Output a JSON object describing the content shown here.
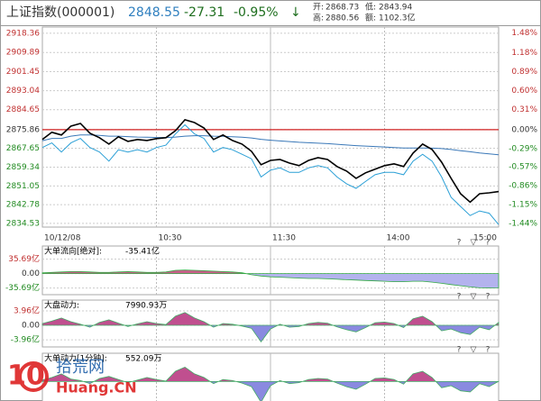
{
  "header": {
    "name": "上证指数(000001)",
    "price": "2848.55",
    "change": "-27.31",
    "change_pct": "-0.95%",
    "arrow": "↓",
    "stats": [
      {
        "label": "开:",
        "value": "2868.73"
      },
      {
        "label": "低:",
        "value": "2843.94"
      },
      {
        "label": "高:",
        "value": "2880.56"
      },
      {
        "label": "额:",
        "value": "1102.3亿"
      }
    ]
  },
  "controls": [
    "?",
    "▽",
    "?"
  ],
  "watermark": {
    "number": "10",
    "name": "拾荒网",
    "site": "Huang.CN"
  },
  "chart_data": [
    {
      "type": "line",
      "x": [
        0,
        5,
        10,
        15,
        20,
        25,
        30,
        35,
        40,
        45,
        50,
        55,
        60,
        65,
        70,
        75,
        80,
        85,
        90,
        95,
        100,
        105,
        110,
        115,
        120,
        125,
        130,
        135,
        140,
        145,
        150,
        155,
        160,
        165,
        170,
        175,
        180,
        185,
        190,
        195,
        200,
        205,
        210,
        215,
        220,
        225,
        230,
        235,
        240
      ],
      "xlim": [
        0,
        240
      ],
      "xticks": [
        {
          "value": 0,
          "label": "10/12/08"
        },
        {
          "value": 60,
          "label": "10:30"
        },
        {
          "value": 120,
          "label": "11:30"
        },
        {
          "value": 180,
          "label": "14:00"
        },
        {
          "value": 240,
          "label": "15:00"
        }
      ],
      "ylim": [
        2832.9,
        2921.1
      ],
      "yticks": [
        2918.36,
        2909.89,
        2901.45,
        2893.04,
        2884.65,
        2875.86,
        2867.65,
        2859.34,
        2851.05,
        2842.78,
        2834.53
      ],
      "y2lim": [
        -1.494,
        1.573
      ],
      "y2ticks": [
        {
          "value": 1.48,
          "label": "1.48%"
        },
        {
          "value": 1.18,
          "label": "1.18%"
        },
        {
          "value": 0.89,
          "label": "0.89%"
        },
        {
          "value": 0.6,
          "label": "0.60%"
        },
        {
          "value": 0.31,
          "label": "0.31%"
        },
        {
          "value": 0,
          "label": "0.00%"
        },
        {
          "value": -0.29,
          "label": "-0.29%"
        },
        {
          "value": -0.57,
          "label": "-0.57%"
        },
        {
          "value": -0.86,
          "label": "-0.86%"
        },
        {
          "value": -1.15,
          "label": "-1.15%"
        },
        {
          "value": -1.44,
          "label": "-1.44%"
        }
      ],
      "baseline": 2875.86,
      "grid": true,
      "series": [
        {
          "color": "#2a9fd6",
          "values": [
            2868,
            2870,
            2866,
            2870,
            2872,
            2868,
            2866,
            2862,
            2867,
            2866,
            2867,
            2866,
            2868,
            2869,
            2874,
            2878,
            2874,
            2872,
            2866,
            2868,
            2867,
            2865,
            2863,
            2855,
            2858,
            2859,
            2857,
            2857,
            2859,
            2860,
            2859,
            2855,
            2852,
            2850,
            2853,
            2856,
            2857,
            2857,
            2856,
            2862,
            2865,
            2862,
            2855,
            2846,
            2842,
            2838,
            2840,
            2839,
            2834
          ]
        },
        {
          "color": "#3a78b8",
          "values": [
            2871,
            2872,
            2872,
            2873,
            2873.5,
            2873.5,
            2873.3,
            2873,
            2873,
            2872.8,
            2872.6,
            2872.5,
            2872.4,
            2872.4,
            2872.6,
            2873,
            2873.2,
            2873.2,
            2873,
            2872.9,
            2872.7,
            2872.5,
            2872.2,
            2871.6,
            2871.2,
            2870.9,
            2870.6,
            2870.3,
            2870.1,
            2869.9,
            2869.7,
            2869.4,
            2869.1,
            2868.8,
            2868.6,
            2868.4,
            2868.2,
            2868,
            2867.8,
            2867.8,
            2867.8,
            2867.7,
            2867.5,
            2867.1,
            2866.6,
            2866.1,
            2865.6,
            2865.2,
            2864.8
          ]
        },
        {
          "color": "#000000",
          "values": [
            2871.5,
            2874.7,
            2873.5,
            2877.4,
            2878.6,
            2874.3,
            2872.3,
            2869.5,
            2872.7,
            2870.7,
            2871.5,
            2871.1,
            2871.9,
            2872.3,
            2875.4,
            2880.2,
            2879.0,
            2876.6,
            2871.5,
            2873.5,
            2871.1,
            2869.5,
            2866.3,
            2860.4,
            2862.3,
            2862.7,
            2861.1,
            2860.0,
            2862.3,
            2863.5,
            2862.7,
            2859.6,
            2857.6,
            2854.4,
            2856.8,
            2858.4,
            2860.0,
            2860.8,
            2859.6,
            2865.5,
            2869.5,
            2867.1,
            2861.5,
            2854.4,
            2847.6,
            2843.9,
            2847.6,
            2848.0,
            2848.55
          ]
        }
      ]
    },
    {
      "type": "area",
      "title": "大单流向[绝对]:",
      "headline": "-35.41亿",
      "x": [
        0,
        5,
        10,
        15,
        20,
        25,
        30,
        35,
        40,
        45,
        50,
        55,
        60,
        65,
        70,
        75,
        80,
        85,
        90,
        95,
        100,
        105,
        110,
        115,
        120,
        125,
        130,
        135,
        140,
        145,
        150,
        155,
        160,
        165,
        170,
        175,
        180,
        185,
        190,
        195,
        200,
        205,
        210,
        215,
        220,
        225,
        230,
        235,
        240
      ],
      "xlim": [
        0,
        240
      ],
      "ylim": [
        -52,
        68
      ],
      "yticks": [
        {
          "value": 35.69,
          "label": "35.69亿"
        },
        {
          "value": 0,
          "label": "0.00"
        },
        {
          "value": -35.69,
          "label": "-35.69亿"
        }
      ],
      "positive_color": "#c9608a",
      "negative_color": "#b3b3ee",
      "line_color": "#33aa44",
      "values": [
        2,
        3,
        4,
        5,
        5,
        4,
        3,
        3,
        4,
        5,
        4,
        3,
        3,
        4,
        8,
        9,
        8,
        7,
        6,
        5,
        4,
        2,
        -3,
        -6,
        -8,
        -9,
        -10,
        -11,
        -12,
        -12,
        -13,
        -14,
        -15,
        -16,
        -17,
        -18,
        -19,
        -20,
        -20,
        -19,
        -19,
        -21,
        -24,
        -27,
        -30,
        -33,
        -35,
        -35.5,
        -35.41
      ]
    },
    {
      "type": "area",
      "title": "大盘动力:",
      "headline": "7990.93万",
      "x": [
        0,
        5,
        10,
        15,
        20,
        25,
        30,
        35,
        40,
        45,
        50,
        55,
        60,
        65,
        70,
        75,
        80,
        85,
        90,
        95,
        100,
        105,
        110,
        115,
        120,
        125,
        130,
        135,
        140,
        145,
        150,
        155,
        160,
        165,
        170,
        175,
        180,
        185,
        190,
        195,
        200,
        205,
        210,
        215,
        220,
        225,
        230,
        235,
        240
      ],
      "xlim": [
        0,
        240
      ],
      "ylim": [
        -5.9,
        6.9
      ],
      "yticks": [
        {
          "value": 3.96,
          "label": "3.96亿"
        },
        {
          "value": 0,
          "label": "0.00"
        },
        {
          "value": -3.96,
          "label": "-3.96亿"
        }
      ],
      "positive_color": "#c04f8f",
      "negative_color": "#8a8ae0",
      "line_color": "#44aa66",
      "values": [
        0.5,
        1.2,
        2.0,
        1.0,
        0.3,
        -0.5,
        0.8,
        1.5,
        0.6,
        -0.3,
        0.4,
        1.0,
        0.5,
        0.2,
        2.5,
        3.5,
        2.0,
        1.0,
        -0.5,
        0.5,
        0.3,
        -0.2,
        -0.8,
        -4.5,
        -1.0,
        0.3,
        -0.5,
        -0.3,
        0.5,
        0.8,
        0.6,
        -0.4,
        -1.2,
        -1.8,
        -0.6,
        0.7,
        0.9,
        0.5,
        -0.6,
        1.8,
        2.5,
        1.0,
        -1.5,
        -1.0,
        -2.0,
        -2.5,
        -0.5,
        -1.2,
        0.799
      ]
    },
    {
      "type": "area",
      "title": "大单动力[1分钟]:",
      "headline": "552.09万",
      "x": [
        0,
        5,
        10,
        15,
        20,
        25,
        30,
        35,
        40,
        45,
        50,
        55,
        60,
        65,
        70,
        75,
        80,
        85,
        90,
        95,
        100,
        105,
        110,
        115,
        120,
        125,
        130,
        135,
        140,
        145,
        150,
        155,
        160,
        165,
        170,
        175,
        180,
        185,
        190,
        195,
        200,
        205,
        210,
        215,
        220,
        225,
        230,
        235,
        240
      ],
      "xlim": [
        0,
        240
      ],
      "ylim": [
        -5,
        5.5
      ],
      "positive_color": "#c04f8f",
      "negative_color": "#8a8ae0",
      "line_color": "#44aa66",
      "values": [
        0.3,
        0.8,
        1.5,
        0.5,
        0.2,
        -0.4,
        0.6,
        1.0,
        0.4,
        -0.2,
        0.3,
        0.8,
        0.4,
        0.1,
        2.0,
        2.8,
        1.5,
        0.8,
        -0.4,
        0.4,
        0.2,
        -0.3,
        -1,
        -4,
        -0.8,
        0.2,
        -0.4,
        -0.2,
        0.4,
        0.6,
        0.5,
        -0.3,
        -1,
        -1.5,
        -0.5,
        0.6,
        0.7,
        0.4,
        -0.5,
        1.5,
        2.0,
        0.8,
        -1.2,
        -0.8,
        -1.8,
        -2,
        -0.4,
        -1,
        0.0552
      ]
    }
  ]
}
